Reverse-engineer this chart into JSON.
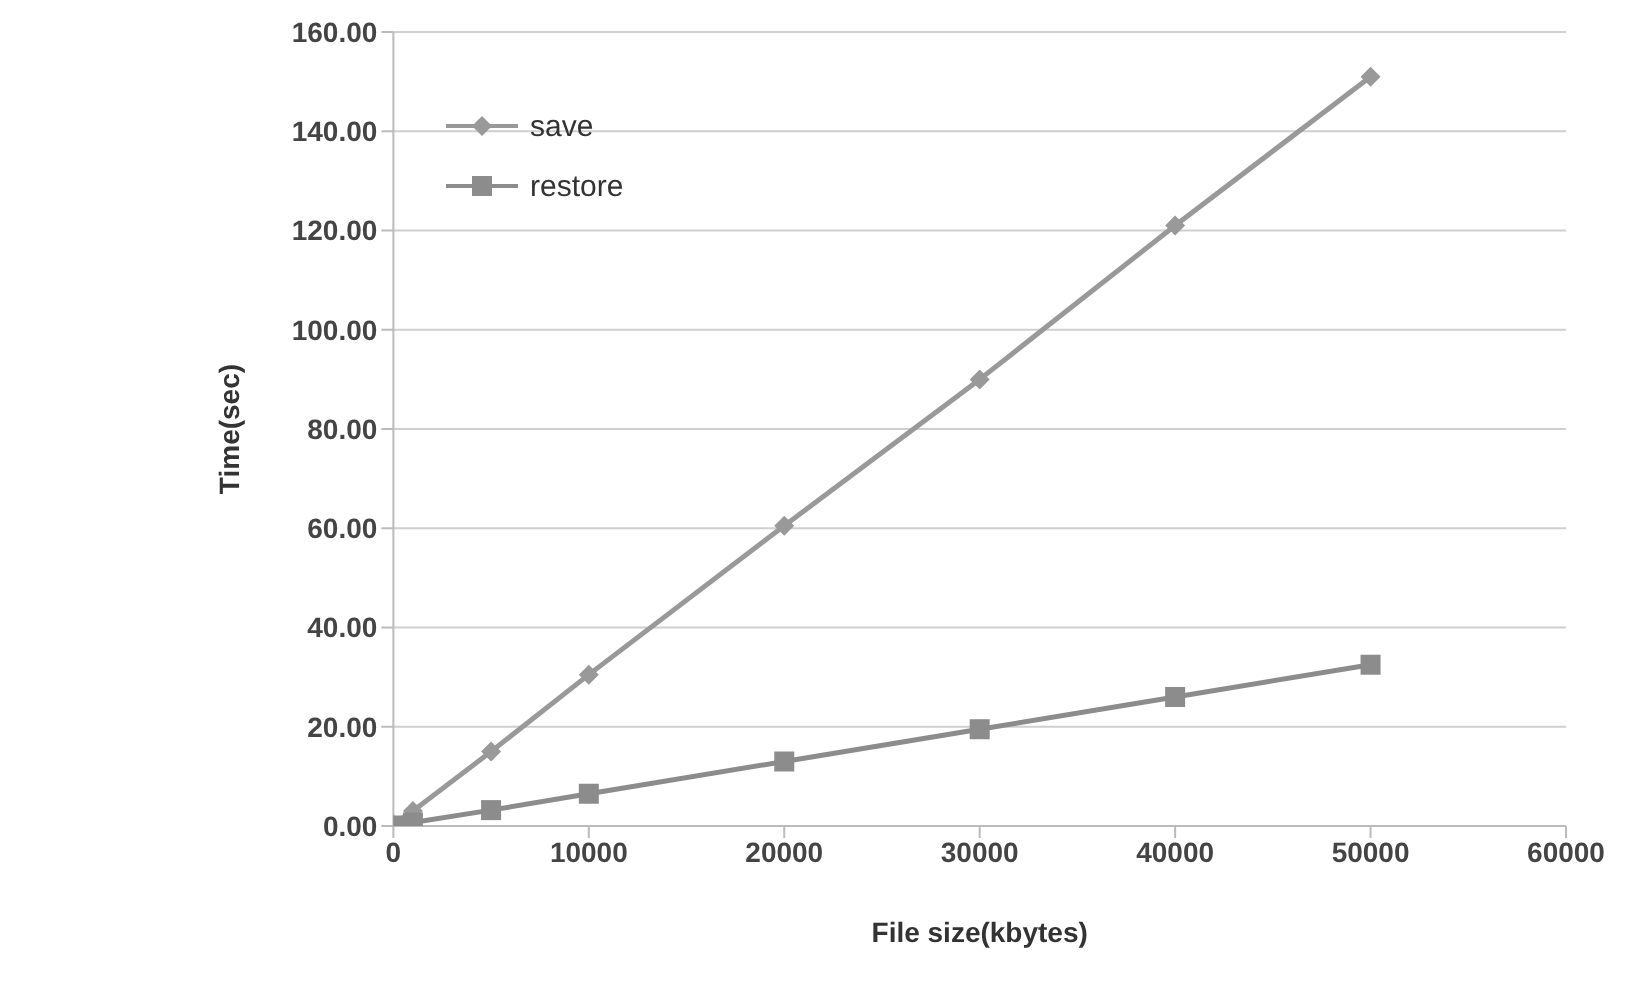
{
  "chart_data": {
    "type": "line",
    "xlabel": "File size(kbytes)",
    "ylabel": "Time(sec)",
    "x": [
      0,
      1000,
      5000,
      10000,
      20000,
      30000,
      40000,
      50000
    ],
    "series": [
      {
        "name": "save",
        "color": "#999999",
        "marker": "diamond",
        "values": [
          0.3,
          3,
          15,
          30.5,
          60.5,
          90,
          121,
          151
        ]
      },
      {
        "name": "restore",
        "color": "#8c8c8c",
        "marker": "square",
        "values": [
          0.1,
          0.7,
          3.2,
          6.5,
          13,
          19.5,
          26,
          32.5
        ]
      }
    ],
    "xlim": [
      0,
      60000
    ],
    "xticks": [
      0,
      10000,
      20000,
      30000,
      40000,
      50000,
      60000
    ],
    "ylim": [
      0,
      160
    ],
    "yticks": [
      {
        "value": 0,
        "label": "0.00"
      },
      {
        "value": 20,
        "label": "20.00"
      },
      {
        "value": 40,
        "label": "40.00"
      },
      {
        "value": 60,
        "label": "60.00"
      },
      {
        "value": 80,
        "label": "80.00"
      },
      {
        "value": 100,
        "label": "100.00"
      },
      {
        "value": 120,
        "label": "120.00"
      },
      {
        "value": 140,
        "label": "140.00"
      },
      {
        "value": 160,
        "label": "160.00"
      }
    ],
    "grid": "y",
    "legend": "top left",
    "line_style": "solid"
  }
}
